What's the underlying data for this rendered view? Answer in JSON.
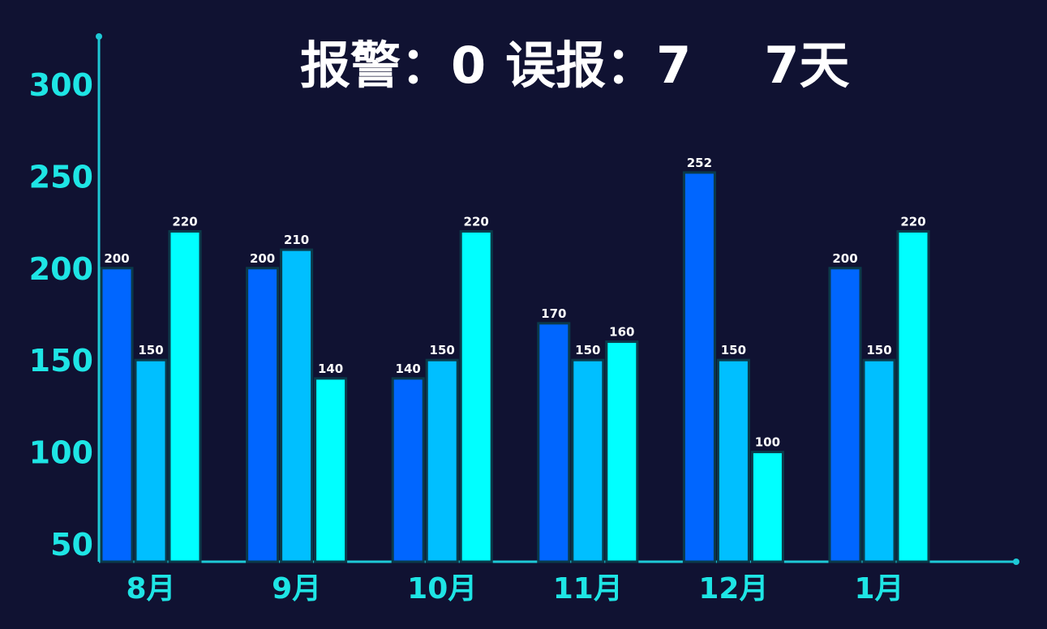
{
  "title": {
    "alarm_label": "报警：",
    "alarm_value": "0",
    "false_label": "误报：",
    "false_value": "7",
    "days": "7天"
  },
  "colors": {
    "background": "#101232",
    "axis": "#1ec9d6",
    "tick_text": "#1ee5e5",
    "label_text": "#ffffff",
    "series": [
      "#0066ff",
      "#00bfff",
      "#00ffff"
    ]
  },
  "chart_data": {
    "type": "bar",
    "categories": [
      "8月",
      "9月",
      "10月",
      "11月",
      "12月",
      "1月"
    ],
    "series": [
      {
        "values": [
          200,
          200,
          140,
          170,
          252,
          200
        ]
      },
      {
        "values": [
          150,
          210,
          150,
          150,
          150,
          150
        ]
      },
      {
        "values": [
          220,
          140,
          220,
          160,
          100,
          220
        ]
      }
    ],
    "data_labels": [
      [
        "200",
        "200",
        "140",
        "170",
        "252",
        "200"
      ],
      [
        "150",
        "210",
        "150",
        "150",
        "150",
        "150"
      ],
      [
        "220",
        "140",
        "220",
        "160",
        "100",
        "220"
      ]
    ],
    "y_ticks": [
      "50",
      "100",
      "150",
      "200",
      "250",
      "300"
    ],
    "ylim": [
      50,
      300
    ],
    "grid": false,
    "legend": "none"
  }
}
